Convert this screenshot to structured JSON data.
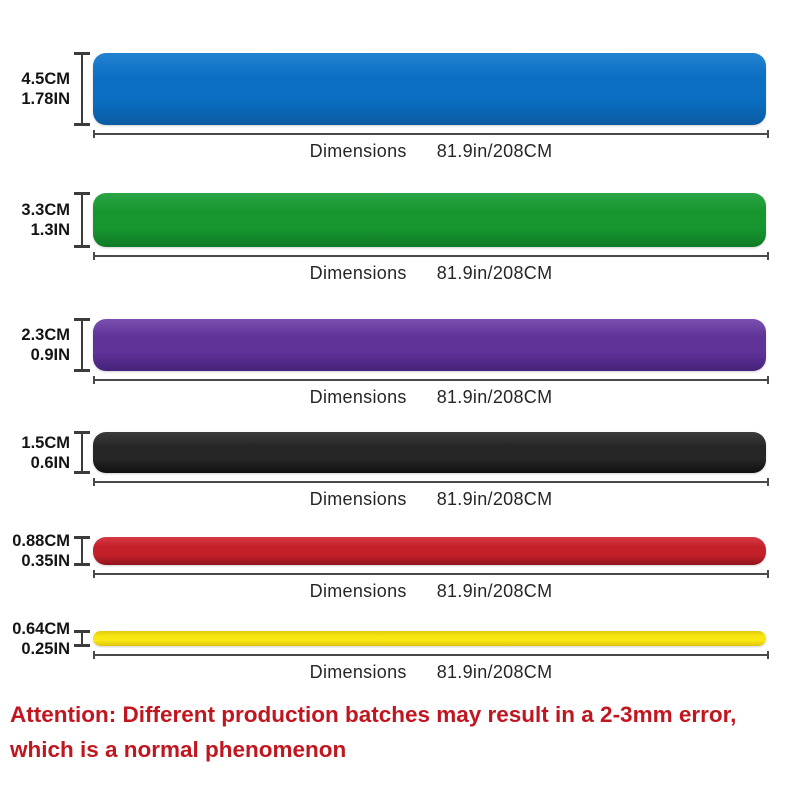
{
  "dimensions_label": "Dimensions",
  "bands": [
    {
      "name": "blue",
      "cm": "4.5CM",
      "inch": "1.78IN",
      "length": "81.9in/208CM",
      "color": "#0b6ec2",
      "color_top": "#2383d2",
      "color_bottom": "#0a5ba2"
    },
    {
      "name": "green",
      "cm": "3.3CM",
      "inch": "1.3IN",
      "length": "81.9in/208CM",
      "color": "#17962f",
      "color_top": "#2ba446",
      "color_bottom": "#0f7a24"
    },
    {
      "name": "purple",
      "cm": "2.3CM",
      "inch": "0.9IN",
      "length": "81.9in/208CM",
      "color": "#5e3296",
      "color_top": "#7b50b0",
      "color_bottom": "#46227a"
    },
    {
      "name": "black",
      "cm": "1.5CM",
      "inch": "0.6IN",
      "length": "81.9in/208CM",
      "color": "#262626",
      "color_top": "#3c3c3c",
      "color_bottom": "#101010"
    },
    {
      "name": "red",
      "cm": "0.88CM",
      "inch": "0.35IN",
      "length": "81.9in/208CM",
      "color": "#c4202a",
      "color_top": "#d63a44",
      "color_bottom": "#8e131d"
    },
    {
      "name": "yellow",
      "cm": "0.64CM",
      "inch": "0.25IN",
      "length": "81.9in/208CM",
      "color": "#f8e711",
      "color_top": "#e2c90f",
      "color_bottom": "#e0c30d"
    }
  ],
  "attention": {
    "line1": "Attention: Different production batches may result in a 2-3mm error,",
    "line2": "which is a normal phenomenon",
    "color": "#c0161f"
  }
}
